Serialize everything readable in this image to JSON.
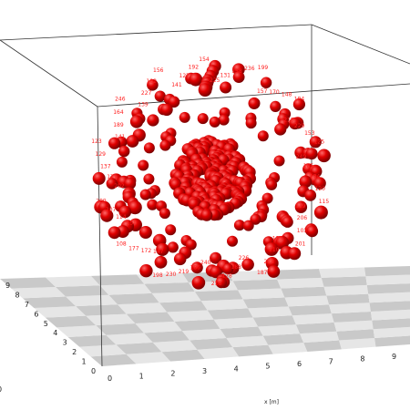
{
  "viewer": {
    "x_axis_label": "x [m]",
    "x_ticks": [
      "0",
      "1",
      "2",
      "3",
      "4",
      "5",
      "6",
      "7",
      "8",
      "9"
    ],
    "y_ticks": [
      "0",
      "1",
      "2",
      "3",
      "4",
      "5",
      "6",
      "7",
      "8",
      "9"
    ],
    "partial_tick": "0"
  },
  "colors": {
    "atom": "#e00000",
    "atom_label": "#ff2020",
    "floor_light": "#e6e6e6",
    "floor_dark": "#c9c9c9",
    "frame": "#333333"
  },
  "outer_labels": [
    "225",
    "131",
    "158",
    "236",
    "199",
    "157",
    "170",
    "148",
    "184",
    "218",
    "229",
    "153",
    "125",
    "249",
    "185",
    "124",
    "120",
    "115",
    "119",
    "206",
    "103",
    "201",
    "135",
    "210",
    "228",
    "187",
    "226",
    "188",
    "178",
    "216",
    "240",
    "186",
    "219",
    "230",
    "198",
    "147",
    "172",
    "177",
    "108",
    "150",
    "114",
    "207",
    "209",
    "202",
    "171",
    "137",
    "129",
    "123",
    "141",
    "189",
    "164",
    "246",
    "139",
    "227",
    "182",
    "156",
    "141",
    "127",
    "192",
    "154"
  ]
}
